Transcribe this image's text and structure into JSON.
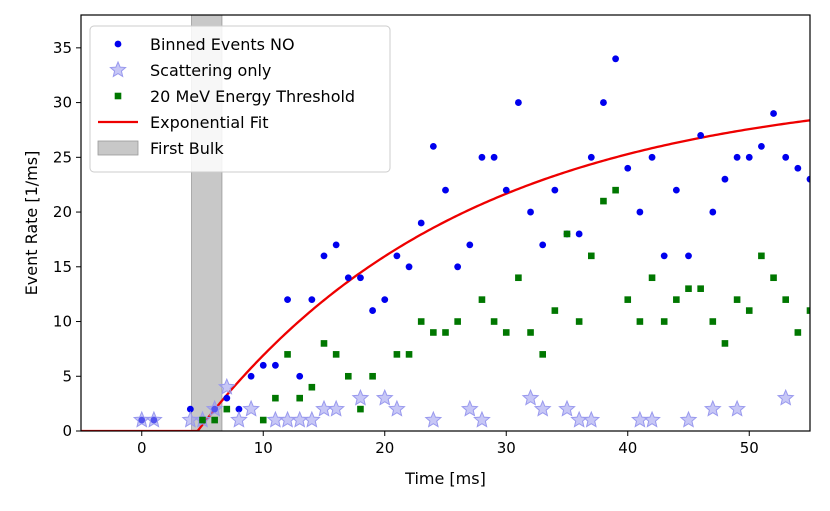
{
  "chart_data": {
    "type": "scatter",
    "title": "",
    "xlabel": "Time [ms]",
    "ylabel": "Event Rate [1/ms]",
    "xlim": [
      -5,
      55
    ],
    "ylim": [
      0,
      38
    ],
    "xticks": [
      0,
      10,
      20,
      30,
      40,
      50
    ],
    "yticks": [
      0,
      5,
      10,
      15,
      20,
      25,
      30,
      35
    ],
    "grid": false,
    "legend_position": "top-left",
    "first_bulk": {
      "name": "First Bulk",
      "x_start": 4.1,
      "x_end": 6.6,
      "color": "#c8c8c8"
    },
    "series": [
      {
        "name": "Binned Events NO",
        "marker": "circle",
        "color": "#0000ee",
        "points": [
          [
            0,
            1
          ],
          [
            1,
            1
          ],
          [
            4,
            2
          ],
          [
            5,
            1
          ],
          [
            6,
            2
          ],
          [
            7,
            3
          ],
          [
            8,
            2
          ],
          [
            9,
            5
          ],
          [
            10,
            6
          ],
          [
            11,
            6
          ],
          [
            12,
            12
          ],
          [
            13,
            5
          ],
          [
            14,
            12
          ],
          [
            15,
            16
          ],
          [
            16,
            17
          ],
          [
            17,
            14
          ],
          [
            18,
            14
          ],
          [
            19,
            11
          ],
          [
            20,
            12
          ],
          [
            21,
            16
          ],
          [
            22,
            15
          ],
          [
            23,
            19
          ],
          [
            24,
            26
          ],
          [
            25,
            22
          ],
          [
            26,
            15
          ],
          [
            27,
            17
          ],
          [
            28,
            25
          ],
          [
            29,
            25
          ],
          [
            30,
            22
          ],
          [
            31,
            30
          ],
          [
            32,
            20
          ],
          [
            33,
            17
          ],
          [
            34,
            22
          ],
          [
            35,
            18
          ],
          [
            36,
            18
          ],
          [
            37,
            25
          ],
          [
            38,
            30
          ],
          [
            39,
            34
          ],
          [
            40,
            24
          ],
          [
            41,
            20
          ],
          [
            42,
            25
          ],
          [
            43,
            16
          ],
          [
            44,
            22
          ],
          [
            45,
            16
          ],
          [
            46,
            27
          ],
          [
            47,
            20
          ],
          [
            48,
            23
          ],
          [
            49,
            25
          ],
          [
            50,
            25
          ],
          [
            51,
            26
          ],
          [
            52,
            29
          ],
          [
            53,
            25
          ],
          [
            54,
            24
          ],
          [
            55,
            23
          ]
        ]
      },
      {
        "name": "Scattering only",
        "marker": "star",
        "color": "#9999ee",
        "points": [
          [
            0,
            1
          ],
          [
            1,
            1
          ],
          [
            4,
            1
          ],
          [
            5,
            1
          ],
          [
            6,
            2
          ],
          [
            7,
            4
          ],
          [
            8,
            1
          ],
          [
            9,
            2
          ],
          [
            11,
            1
          ],
          [
            12,
            1
          ],
          [
            13,
            1
          ],
          [
            14,
            1
          ],
          [
            15,
            2
          ],
          [
            16,
            2
          ],
          [
            18,
            3
          ],
          [
            20,
            3
          ],
          [
            21,
            2
          ],
          [
            24,
            1
          ],
          [
            27,
            2
          ],
          [
            28,
            1
          ],
          [
            32,
            3
          ],
          [
            33,
            2
          ],
          [
            35,
            2
          ],
          [
            36,
            1
          ],
          [
            37,
            1
          ],
          [
            41,
            1
          ],
          [
            42,
            1
          ],
          [
            45,
            1
          ],
          [
            47,
            2
          ],
          [
            49,
            2
          ],
          [
            53,
            3
          ]
        ]
      },
      {
        "name": "20 MeV Energy Threshold",
        "marker": "square",
        "color": "#007700",
        "points": [
          [
            5,
            1
          ],
          [
            6,
            1
          ],
          [
            7,
            2
          ],
          [
            10,
            1
          ],
          [
            11,
            3
          ],
          [
            12,
            7
          ],
          [
            13,
            3
          ],
          [
            14,
            4
          ],
          [
            15,
            8
          ],
          [
            16,
            7
          ],
          [
            17,
            5
          ],
          [
            18,
            2
          ],
          [
            19,
            5
          ],
          [
            21,
            7
          ],
          [
            22,
            7
          ],
          [
            23,
            10
          ],
          [
            24,
            9
          ],
          [
            25,
            9
          ],
          [
            26,
            10
          ],
          [
            28,
            12
          ],
          [
            29,
            10
          ],
          [
            30,
            9
          ],
          [
            31,
            14
          ],
          [
            32,
            9
          ],
          [
            33,
            7
          ],
          [
            34,
            11
          ],
          [
            35,
            18
          ],
          [
            36,
            10
          ],
          [
            37,
            16
          ],
          [
            38,
            21
          ],
          [
            39,
            22
          ],
          [
            40,
            12
          ],
          [
            41,
            10
          ],
          [
            42,
            14
          ],
          [
            43,
            10
          ],
          [
            44,
            12
          ],
          [
            45,
            13
          ],
          [
            46,
            13
          ],
          [
            47,
            10
          ],
          [
            48,
            8
          ],
          [
            49,
            12
          ],
          [
            50,
            11
          ],
          [
            51,
            16
          ],
          [
            52,
            14
          ],
          [
            53,
            12
          ],
          [
            54,
            9
          ],
          [
            55,
            11
          ]
        ]
      },
      {
        "name": "Exponential Fit",
        "marker": "line",
        "color": "#ee0000",
        "model": {
          "form": "A*(1-exp(-(t-t0)/tau))",
          "A": 31.5,
          "t0": 4.6,
          "tau": 21.8
        }
      }
    ],
    "legend_order": [
      "Binned Events NO",
      "Scattering only",
      "20 MeV Energy Threshold",
      "Exponential Fit",
      "First Bulk"
    ]
  }
}
